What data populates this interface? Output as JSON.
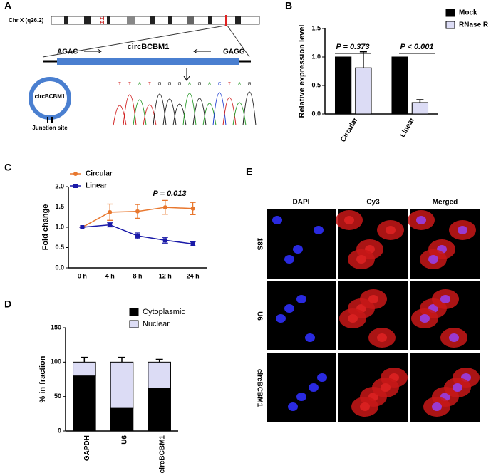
{
  "panel_labels": [
    "A",
    "B",
    "C",
    "D",
    "E"
  ],
  "diagram": {
    "chromosome": "Chr X (q26.2)",
    "left_junction": "AGAC",
    "gene": "circBCBM1",
    "right_junction": "GAGG",
    "circle_label": "circBCBM1",
    "junction_label": "Junction site",
    "sequence": [
      "T",
      "T",
      "A",
      "T",
      "G",
      "G",
      "G",
      "A",
      "G",
      "A",
      "C",
      "T",
      "A",
      "G"
    ]
  },
  "chart_data": [
    {
      "type": "bar",
      "y_label": "Relative expression level",
      "categories": [
        "Circular",
        "Linear"
      ],
      "series": [
        {
          "name": "Mock",
          "color": "#000000",
          "values": [
            1.0,
            1.0
          ]
        },
        {
          "name": "RNase R",
          "color": "#dcdcf5",
          "values": [
            0.81,
            0.2
          ],
          "errors": [
            0.28,
            0.05
          ]
        }
      ],
      "ylim": [
        0,
        1.5
      ],
      "yticks": [
        {
          "value": 0,
          "label": "0.0"
        },
        {
          "value": 0.5,
          "label": "0.5"
        },
        {
          "value": 1.0,
          "label": "1.0"
        },
        {
          "value": 1.5,
          "label": "1.5"
        }
      ],
      "annotations": [
        "P = 0.373",
        "P < 0.001"
      ],
      "legend": "right"
    },
    {
      "type": "line",
      "y_label": "Fold change",
      "categories": [
        "0 h",
        "4 h",
        "8 h",
        "12 h",
        "24 h"
      ],
      "series": [
        {
          "name": "Circular",
          "color": "#e8772e",
          "values": [
            1.0,
            1.37,
            1.39,
            1.49,
            1.46
          ],
          "errors": [
            0,
            0.2,
            0.17,
            0.17,
            0.15
          ]
        },
        {
          "name": "Linear",
          "color": "#1a1aa8",
          "values": [
            1.0,
            1.06,
            0.79,
            0.68,
            0.59
          ],
          "errors": [
            0,
            0.05,
            0.07,
            0.07,
            0.05
          ]
        }
      ],
      "ylim": [
        0,
        2.0
      ],
      "yticks": [
        {
          "value": 0,
          "label": "0.0"
        },
        {
          "value": 0.5,
          "label": "0.5"
        },
        {
          "value": 1.0,
          "label": "1.0"
        },
        {
          "value": 1.5,
          "label": "1.5"
        },
        {
          "value": 2.0,
          "label": "2.0"
        }
      ],
      "annotations": [
        "P = 0.013"
      ],
      "legend": "upper left"
    },
    {
      "type": "bar",
      "stacked": true,
      "y_label": "% in fraction",
      "categories": [
        "GAPDH",
        "U6",
        "circBCBM1"
      ],
      "series": [
        {
          "name": "Cytoplasmic",
          "color": "#000000",
          "values": [
            80,
            33,
            62
          ],
          "errors": [
            7,
            7,
            3
          ]
        },
        {
          "name": "Nuclear",
          "color": "#dcdcf5",
          "values": [
            20,
            67,
            38
          ],
          "errors": [
            7,
            7,
            4
          ]
        }
      ],
      "ylim": [
        0,
        150
      ],
      "yticks": [
        0,
        50,
        100,
        150
      ],
      "legend": "top"
    }
  ],
  "micrographs": {
    "columns": [
      "DAPI",
      "Cy3",
      "Merged"
    ],
    "rows": [
      "18S",
      "U6",
      "circBCBM1"
    ]
  }
}
